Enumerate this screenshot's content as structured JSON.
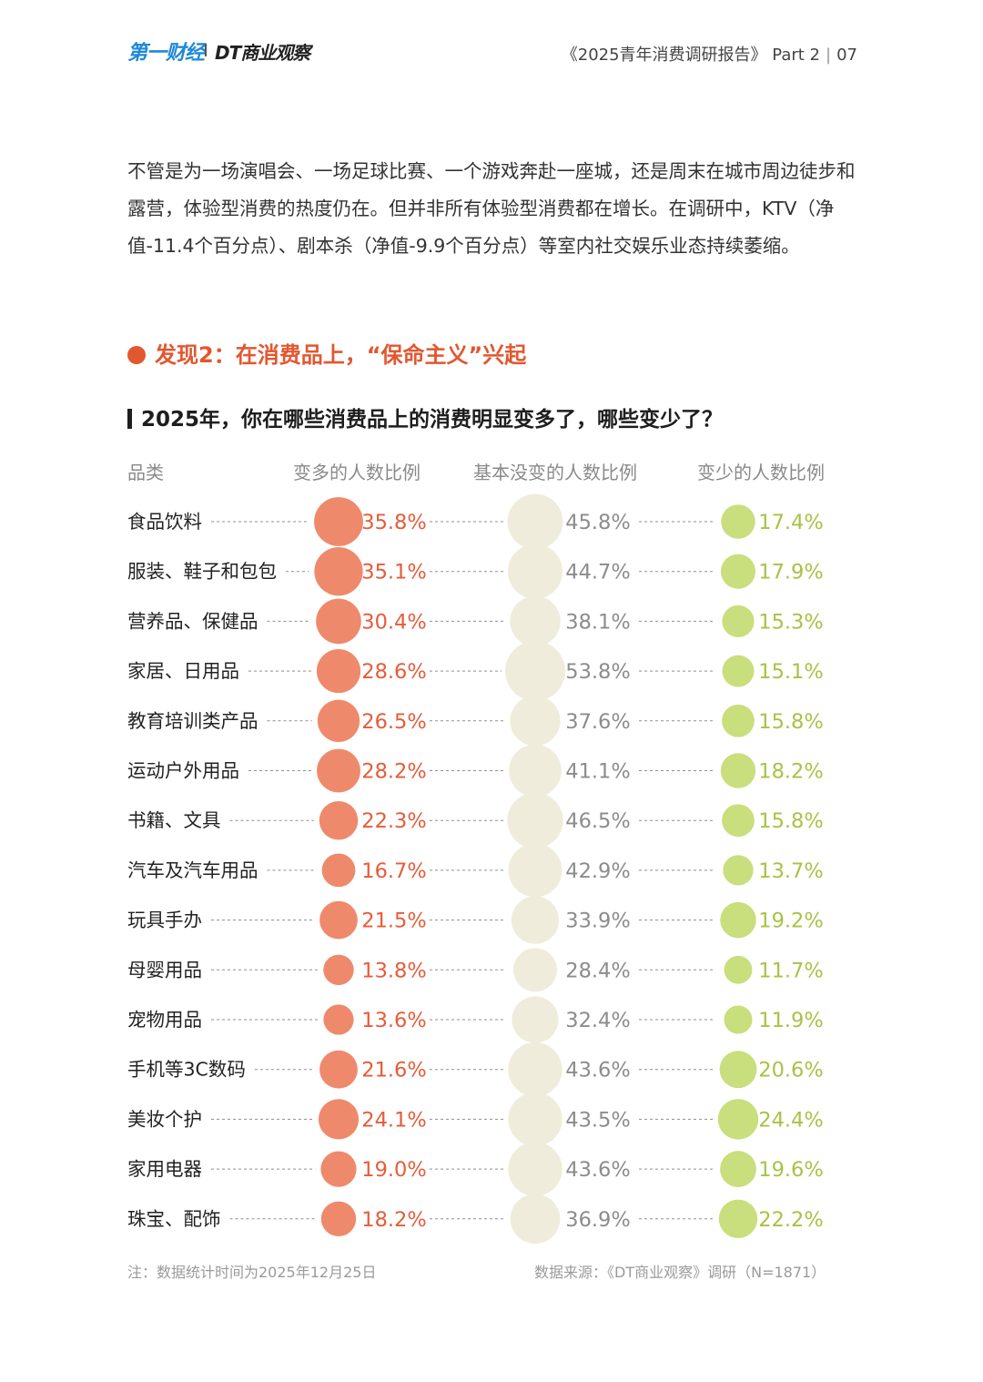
{
  "header": {
    "logo_left": "第一财经",
    "logo_right": "DT商业观察",
    "report_title": "《2025青年消费调研报告》",
    "part": "Part 2",
    "separator": "|",
    "page_number": "07"
  },
  "intro_text": "不管是为一场演唱会、一场足球比赛、一个游戏奔赴一座城，还是周末在城市周边徒步和露营，体验型消费的热度仍在。但并非所有体验型消费都在增长。在调研中，KTV（净值-11.4个百分点）、剧本杀（净值-9.9个百分点）等室内社交娱乐业态持续萎缩。",
  "finding_title": "发现2：在消费品上，“保命主义”兴起",
  "colors": {
    "more": "#ee8a6b",
    "more_text": "#e55c3a",
    "same": "#f0ecdc",
    "same_text": "#8c8c8c",
    "less": "#c9de7c",
    "less_text": "#a8c246",
    "accent": "#e2572f"
  },
  "chart_data": {
    "type": "table",
    "title": "2025年，你在哪些消费品上的消费明显变多了，哪些变少了？",
    "columns": [
      "品类",
      "变多的人数比例",
      "基本没变的人数比例",
      "变少的人数比例"
    ],
    "categories": [
      "食品饮料",
      "服装、鞋子和包包",
      "营养品、保健品",
      "家居、日用品",
      "教育培训类产品",
      "运动户外用品",
      "书籍、文具",
      "汽车及汽车用品",
      "玩具手办",
      "母婴用品",
      "宠物用品",
      "手机等3C数码",
      "美妆个护",
      "家用电器",
      "珠宝、配饰"
    ],
    "series": [
      {
        "name": "变多的人数比例",
        "values": [
          35.8,
          35.1,
          30.4,
          28.6,
          26.5,
          28.2,
          22.3,
          16.7,
          21.5,
          13.8,
          13.6,
          21.6,
          24.1,
          19.0,
          18.2
        ]
      },
      {
        "name": "基本没变的人数比例",
        "values": [
          45.8,
          44.7,
          38.1,
          53.8,
          37.6,
          41.1,
          46.5,
          42.9,
          33.9,
          28.4,
          32.4,
          43.6,
          43.5,
          43.6,
          36.9
        ]
      },
      {
        "name": "变少的人数比例",
        "values": [
          17.4,
          17.9,
          15.3,
          15.1,
          15.8,
          18.2,
          15.8,
          13.7,
          19.2,
          11.7,
          11.9,
          20.6,
          24.4,
          19.6,
          22.2
        ]
      }
    ],
    "unit": "%"
  },
  "footer": {
    "note": "注：数据统计时间为2025年12月25日",
    "source": "数据来源：《DT商业观察》调研（N=1871）"
  }
}
